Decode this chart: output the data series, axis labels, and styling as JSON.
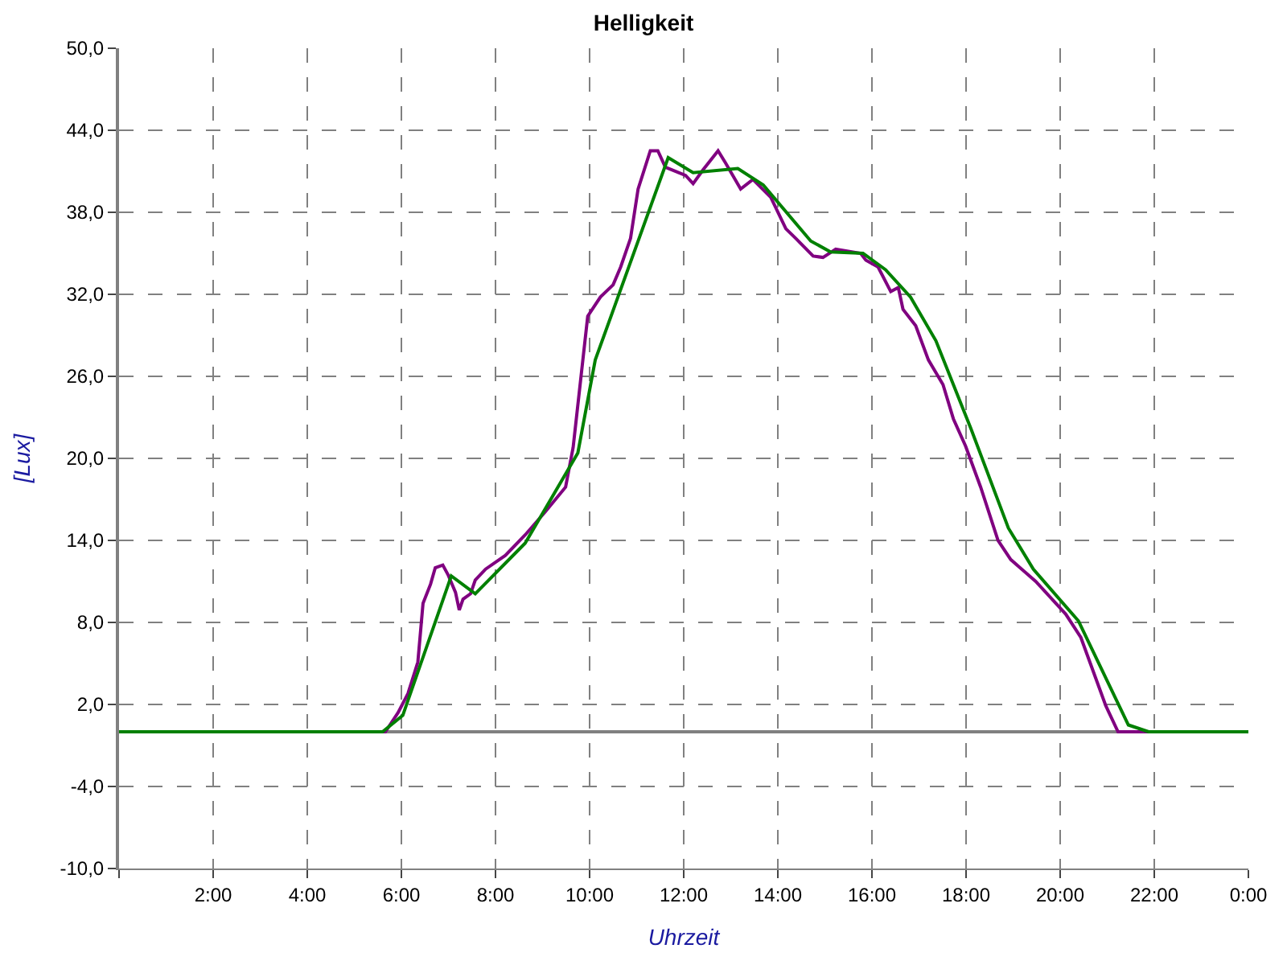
{
  "chart_data": {
    "type": "line",
    "title": "Helligkeit",
    "xlabel": "Uhrzeit",
    "ylabel": "[Lux]",
    "xlim": [
      0,
      24
    ],
    "xticks": [
      {
        "value": 0,
        "label": null
      },
      {
        "value": 2,
        "label": "2:00"
      },
      {
        "value": 4,
        "label": "4:00"
      },
      {
        "value": 6,
        "label": "6:00"
      },
      {
        "value": 8,
        "label": "8:00"
      },
      {
        "value": 10,
        "label": "10:00"
      },
      {
        "value": 12,
        "label": "12:00"
      },
      {
        "value": 14,
        "label": "14:00"
      },
      {
        "value": 16,
        "label": "16:00"
      },
      {
        "value": 18,
        "label": "18:00"
      },
      {
        "value": 20,
        "label": "20:00"
      },
      {
        "value": 22,
        "label": "22:00"
      },
      {
        "value": 24,
        "label": "0:00"
      }
    ],
    "ylim": [
      -10,
      50
    ],
    "yticks": [
      {
        "value": -10,
        "label": "-10,0"
      },
      {
        "value": -4,
        "label": "-4,0"
      },
      {
        "value": 2,
        "label": "2,0"
      },
      {
        "value": 8,
        "label": "8,0"
      },
      {
        "value": 14,
        "label": "14,0"
      },
      {
        "value": 20,
        "label": "20,0"
      },
      {
        "value": 26,
        "label": "26,0"
      },
      {
        "value": 32,
        "label": "32,0"
      },
      {
        "value": 38,
        "label": "38,0"
      },
      {
        "value": 44,
        "label": "44,0"
      },
      {
        "value": 50,
        "label": "50,0"
      }
    ],
    "grid": true,
    "marker": "none",
    "line_style": "solid",
    "ref_lines": [
      {
        "axis": "y",
        "value": 0,
        "color": "#808080"
      }
    ],
    "series": [
      {
        "color": "#800080",
        "x": [
          0,
          5.66,
          5.93,
          6.14,
          6.35,
          6.46,
          6.62,
          6.72,
          6.88,
          6.99,
          7.15,
          7.23,
          7.31,
          7.47,
          7.57,
          7.79,
          8.21,
          8.63,
          9.06,
          9.49,
          9.65,
          9.96,
          10.23,
          10.5,
          10.66,
          10.87,
          11.03,
          11.29,
          11.45,
          11.61,
          12.04,
          12.2,
          12.41,
          12.73,
          12.89,
          13.21,
          13.47,
          13.85,
          14.17,
          14.38,
          14.75,
          14.96,
          15.23,
          15.76,
          15.87,
          16.13,
          16.4,
          16.56,
          16.66,
          16.93,
          17.2,
          17.51,
          17.73,
          17.99,
          18.31,
          18.68,
          18.95,
          19.48,
          20.12,
          20.44,
          20.97,
          21.23,
          24
        ],
        "values": [
          0,
          0,
          1.4,
          2.8,
          5.1,
          9.4,
          10.8,
          12.0,
          12.2,
          11.5,
          10.2,
          8.9,
          9.7,
          10.1,
          11.1,
          11.9,
          12.9,
          14.4,
          16.1,
          17.9,
          20.8,
          30.4,
          31.8,
          32.7,
          34.0,
          36.1,
          39.7,
          42.5,
          42.5,
          41.3,
          40.7,
          40.1,
          41.1,
          42.5,
          41.6,
          39.7,
          40.4,
          39.1,
          36.8,
          36.1,
          34.8,
          34.7,
          35.3,
          35.0,
          34.5,
          34.0,
          32.2,
          32.5,
          30.9,
          29.7,
          27.2,
          25.4,
          22.9,
          20.9,
          17.9,
          14.0,
          12.6,
          11.0,
          8.6,
          6.9,
          1.9,
          0,
          0
        ]
      },
      {
        "color": "#008000",
        "x": [
          0,
          5.6,
          6.03,
          7.06,
          7.57,
          8.63,
          9.75,
          10.12,
          11.67,
          12.2,
          13.15,
          13.69,
          14.7,
          15.12,
          15.81,
          16.29,
          16.82,
          17.36,
          18.1,
          18.9,
          19.43,
          20.39,
          21.45,
          21.88,
          24
        ],
        "values": [
          0,
          0,
          1.2,
          11.4,
          10.1,
          13.8,
          20.4,
          27.2,
          42.0,
          40.9,
          41.2,
          40.0,
          35.9,
          35.1,
          35.0,
          33.8,
          31.8,
          28.6,
          22.2,
          14.9,
          11.9,
          8.1,
          0.5,
          0,
          0
        ]
      }
    ]
  }
}
